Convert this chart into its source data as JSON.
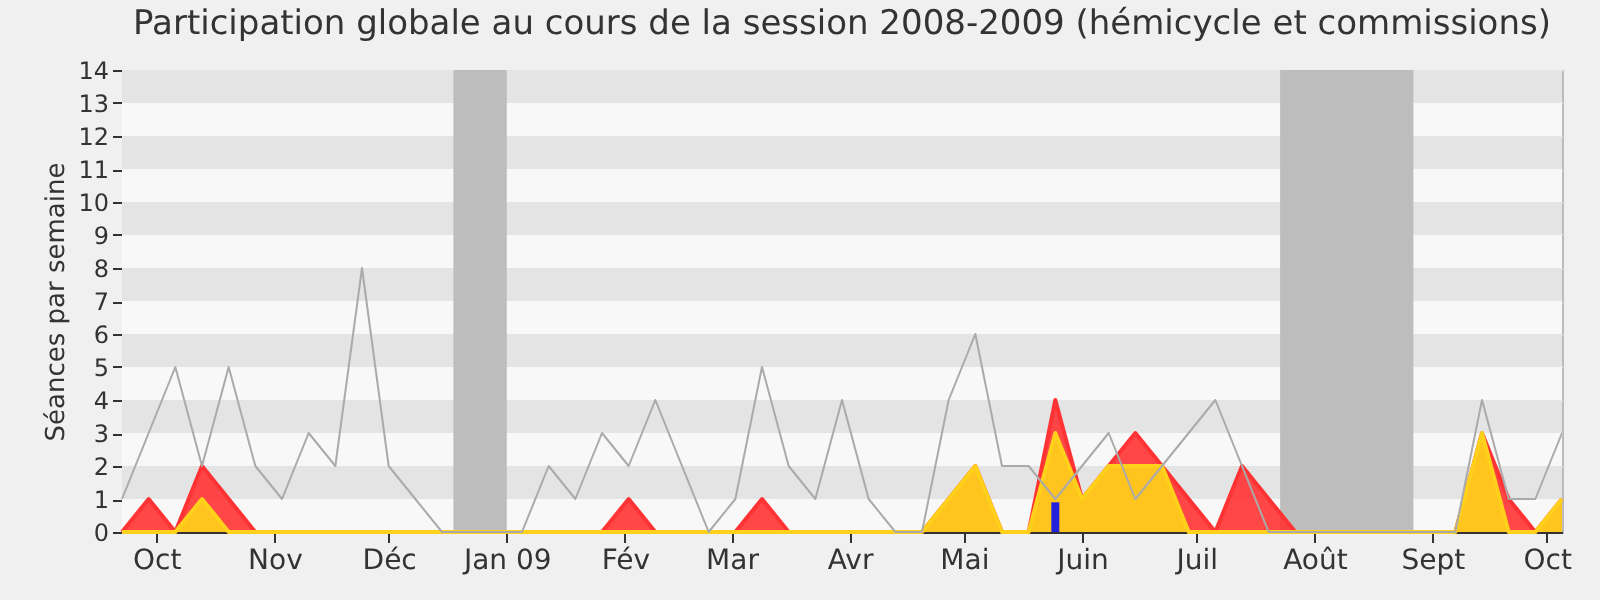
{
  "chart_data": {
    "type": "area",
    "title": "Participation globale au cours de la session 2008-2009 (hémicycle et commissions)",
    "ylabel": "Séances par semaine",
    "x": [
      "2008-09-22",
      "2008-09-29",
      "2008-10-06",
      "2008-10-13",
      "2008-10-20",
      "2008-10-27",
      "2008-11-03",
      "2008-11-10",
      "2008-11-17",
      "2008-11-24",
      "2008-12-01",
      "2008-12-08",
      "2008-12-15",
      "2008-12-22",
      "2008-12-29",
      "2009-01-05",
      "2009-01-12",
      "2009-01-19",
      "2009-01-26",
      "2009-02-02",
      "2009-02-09",
      "2009-02-16",
      "2009-02-23",
      "2009-03-02",
      "2009-03-09",
      "2009-03-16",
      "2009-03-23",
      "2009-03-30",
      "2009-04-06",
      "2009-04-13",
      "2009-04-20",
      "2009-04-27",
      "2009-05-04",
      "2009-05-11",
      "2009-05-18",
      "2009-05-25",
      "2009-06-01",
      "2009-06-08",
      "2009-06-15",
      "2009-06-22",
      "2009-06-29",
      "2009-07-06",
      "2009-07-13",
      "2009-07-20",
      "2009-07-27",
      "2009-08-03",
      "2009-08-10",
      "2009-08-17",
      "2009-08-24",
      "2009-08-31",
      "2009-09-07",
      "2009-09-14",
      "2009-09-21",
      "2009-09-28",
      "2009-10-05"
    ],
    "xlim": [
      "2008-09-22",
      "2009-10-05"
    ],
    "xticks": [
      {
        "value": "2008-10-01",
        "label": "Oct"
      },
      {
        "value": "2008-11-01",
        "label": "Nov"
      },
      {
        "value": "2008-12-01",
        "label": "Déc"
      },
      {
        "value": "2009-01-01",
        "label": "Jan 09"
      },
      {
        "value": "2009-02-01",
        "label": "Fév"
      },
      {
        "value": "2009-03-01",
        "label": "Mar"
      },
      {
        "value": "2009-04-01",
        "label": "Avr"
      },
      {
        "value": "2009-05-01",
        "label": "Mai"
      },
      {
        "value": "2009-06-01",
        "label": "Juin"
      },
      {
        "value": "2009-07-01",
        "label": "Juil"
      },
      {
        "value": "2009-08-01",
        "label": "Août"
      },
      {
        "value": "2009-09-01",
        "label": "Sept"
      },
      {
        "value": "2009-10-01",
        "label": "Oct"
      }
    ],
    "ylim": [
      0,
      14
    ],
    "yticks": [
      0,
      1,
      2,
      3,
      4,
      5,
      6,
      7,
      8,
      9,
      10,
      11,
      12,
      13,
      14
    ],
    "grid": "y",
    "bands": [
      {
        "axis": "x",
        "from": "2008-12-18",
        "to": "2009-01-01",
        "color": "#bdbdbd"
      },
      {
        "axis": "x",
        "from": "2009-07-23",
        "to": "2009-08-27",
        "color": "#bdbdbd"
      }
    ],
    "series": [
      {
        "color": "#ff3333",
        "values": [
          0,
          1,
          0,
          2,
          1,
          0,
          0,
          0,
          0,
          0,
          0,
          0,
          0,
          0,
          0,
          0,
          0,
          0,
          0,
          1,
          0,
          0,
          0,
          0,
          1,
          0,
          0,
          0,
          0,
          0,
          0,
          1,
          2,
          0,
          0,
          4,
          1,
          2,
          3,
          2,
          1,
          0,
          2,
          1,
          0,
          0,
          0,
          0,
          0,
          0,
          0,
          3,
          1,
          0,
          1
        ]
      },
      {
        "type": "area",
        "color": "#ffd11a",
        "values": [
          0,
          0,
          0,
          1,
          0,
          0,
          0,
          0,
          0,
          0,
          0,
          0,
          0,
          0,
          0,
          0,
          0,
          0,
          0,
          0,
          0,
          0,
          0,
          0,
          0,
          0,
          0,
          0,
          0,
          0,
          0,
          1,
          2,
          0,
          0,
          3,
          1,
          2,
          2,
          2,
          0,
          0,
          0,
          0,
          0,
          0,
          0,
          0,
          0,
          0,
          0,
          3,
          0,
          0,
          1
        ]
      },
      {
        "type": "line",
        "color": "#aaaaaa",
        "values": [
          1,
          3,
          5,
          2,
          5,
          2,
          1,
          3,
          2,
          8,
          2,
          1,
          0,
          0,
          0,
          0,
          2,
          1,
          3,
          2,
          4,
          2,
          0,
          1,
          5,
          2,
          1,
          4,
          1,
          0,
          0,
          4,
          6,
          2,
          2,
          1,
          2,
          3,
          1,
          2,
          3,
          4,
          2,
          0,
          0,
          0,
          0,
          0,
          0,
          0,
          0,
          4,
          1,
          1,
          3
        ]
      },
      {
        "type": "bar",
        "color": "#2222dd",
        "values": [
          null,
          null,
          null,
          null,
          null,
          null,
          null,
          null,
          null,
          null,
          null,
          null,
          null,
          null,
          null,
          null,
          null,
          null,
          null,
          null,
          null,
          null,
          null,
          null,
          null,
          null,
          null,
          null,
          null,
          null,
          null,
          null,
          null,
          null,
          null,
          0.9,
          null,
          null,
          null,
          null,
          null,
          null,
          null,
          null,
          null,
          null,
          null,
          null,
          null,
          null,
          null,
          null,
          null,
          null,
          null
        ]
      }
    ]
  }
}
